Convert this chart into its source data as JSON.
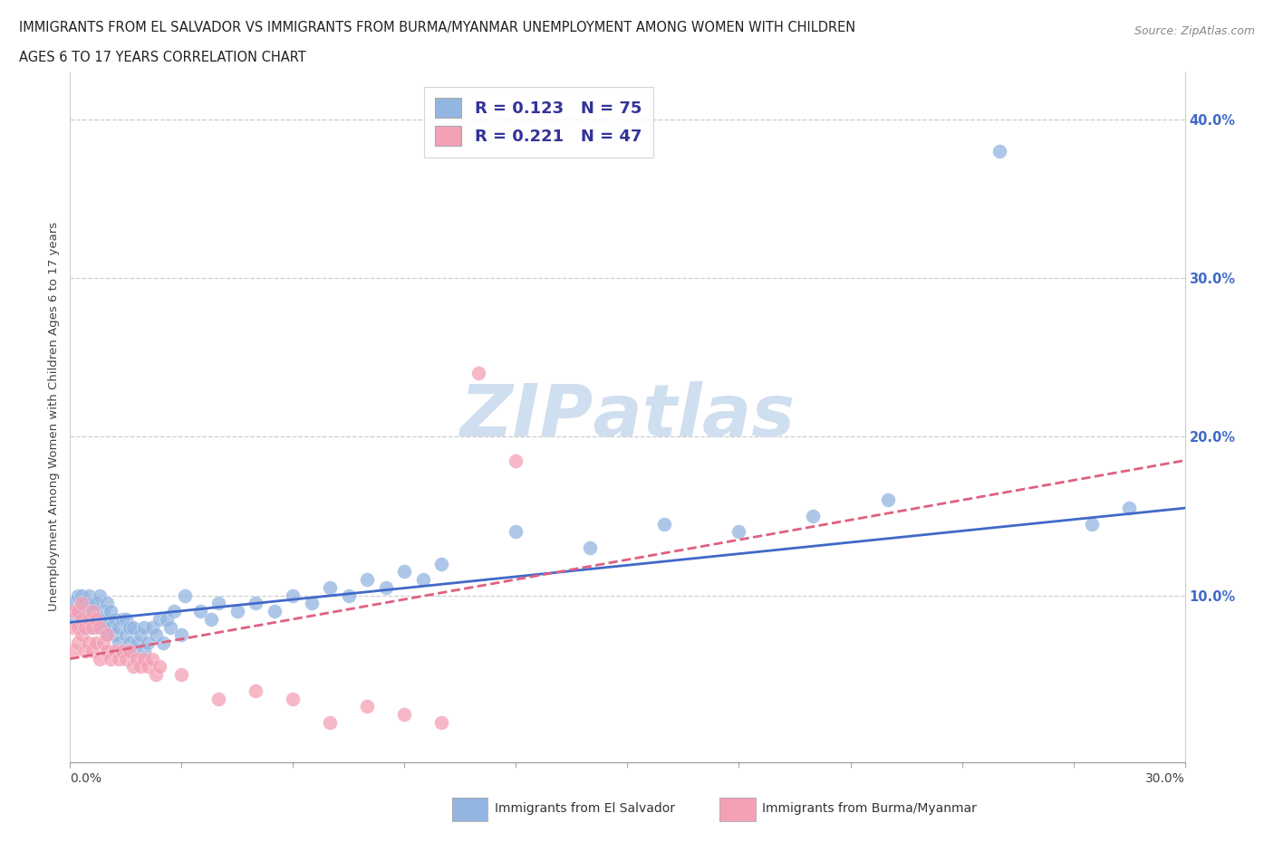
{
  "title_line1": "IMMIGRANTS FROM EL SALVADOR VS IMMIGRANTS FROM BURMA/MYANMAR UNEMPLOYMENT AMONG WOMEN WITH CHILDREN",
  "title_line2": "AGES 6 TO 17 YEARS CORRELATION CHART",
  "source_text": "Source: ZipAtlas.com",
  "ylabel": "Unemployment Among Women with Children Ages 6 to 17 years",
  "xlim": [
    0.0,
    0.3
  ],
  "ylim": [
    -0.005,
    0.43
  ],
  "color_blue": "#93b5e1",
  "color_pink": "#f4a0b5",
  "trendline_blue": "#4169c8",
  "trendline_pink": "#e06080",
  "watermark_color": "#d0dff0",
  "blue_R": "0.123",
  "blue_N": "75",
  "pink_R": "0.221",
  "pink_N": "47",
  "blue_scatter_x": [
    0.001,
    0.001,
    0.002,
    0.002,
    0.003,
    0.003,
    0.003,
    0.004,
    0.004,
    0.005,
    0.005,
    0.005,
    0.006,
    0.006,
    0.007,
    0.007,
    0.008,
    0.008,
    0.009,
    0.009,
    0.01,
    0.01,
    0.01,
    0.011,
    0.011,
    0.012,
    0.012,
    0.013,
    0.013,
    0.014,
    0.014,
    0.015,
    0.015,
    0.016,
    0.016,
    0.017,
    0.017,
    0.018,
    0.019,
    0.02,
    0.02,
    0.021,
    0.022,
    0.023,
    0.024,
    0.025,
    0.026,
    0.027,
    0.028,
    0.03,
    0.031,
    0.035,
    0.038,
    0.04,
    0.045,
    0.05,
    0.055,
    0.06,
    0.065,
    0.07,
    0.075,
    0.08,
    0.085,
    0.09,
    0.095,
    0.1,
    0.12,
    0.14,
    0.16,
    0.18,
    0.2,
    0.22,
    0.25,
    0.275,
    0.285
  ],
  "blue_scatter_y": [
    0.085,
    0.095,
    0.09,
    0.1,
    0.08,
    0.09,
    0.1,
    0.085,
    0.095,
    0.08,
    0.09,
    0.1,
    0.085,
    0.095,
    0.08,
    0.095,
    0.085,
    0.1,
    0.08,
    0.09,
    0.075,
    0.085,
    0.095,
    0.08,
    0.09,
    0.075,
    0.085,
    0.07,
    0.08,
    0.065,
    0.085,
    0.075,
    0.085,
    0.07,
    0.08,
    0.065,
    0.08,
    0.07,
    0.075,
    0.065,
    0.08,
    0.07,
    0.08,
    0.075,
    0.085,
    0.07,
    0.085,
    0.08,
    0.09,
    0.075,
    0.1,
    0.09,
    0.085,
    0.095,
    0.09,
    0.095,
    0.09,
    0.1,
    0.095,
    0.105,
    0.1,
    0.11,
    0.105,
    0.115,
    0.11,
    0.12,
    0.14,
    0.13,
    0.145,
    0.14,
    0.15,
    0.16,
    0.38,
    0.145,
    0.155
  ],
  "pink_scatter_x": [
    0.001,
    0.001,
    0.001,
    0.002,
    0.002,
    0.002,
    0.003,
    0.003,
    0.003,
    0.004,
    0.004,
    0.005,
    0.005,
    0.006,
    0.006,
    0.006,
    0.007,
    0.007,
    0.008,
    0.008,
    0.009,
    0.01,
    0.01,
    0.011,
    0.012,
    0.013,
    0.014,
    0.015,
    0.016,
    0.017,
    0.018,
    0.019,
    0.02,
    0.021,
    0.022,
    0.023,
    0.024,
    0.03,
    0.04,
    0.05,
    0.06,
    0.07,
    0.08,
    0.09,
    0.1,
    0.11,
    0.12
  ],
  "pink_scatter_y": [
    0.065,
    0.08,
    0.09,
    0.07,
    0.08,
    0.09,
    0.075,
    0.085,
    0.095,
    0.065,
    0.08,
    0.07,
    0.085,
    0.065,
    0.08,
    0.09,
    0.07,
    0.085,
    0.06,
    0.08,
    0.07,
    0.065,
    0.075,
    0.06,
    0.065,
    0.06,
    0.065,
    0.06,
    0.065,
    0.055,
    0.06,
    0.055,
    0.06,
    0.055,
    0.06,
    0.05,
    0.055,
    0.05,
    0.035,
    0.04,
    0.035,
    0.02,
    0.03,
    0.025,
    0.02,
    0.24,
    0.185
  ]
}
